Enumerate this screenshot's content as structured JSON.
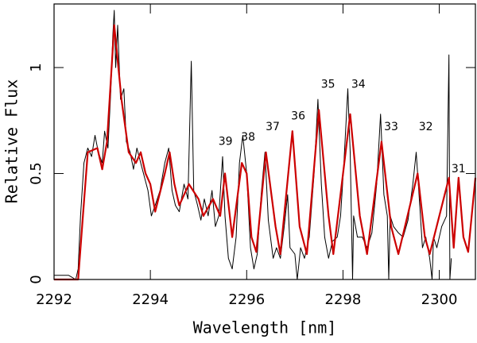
{
  "chart_data": {
    "type": "line",
    "xlabel": "Wavelength [nm]",
    "ylabel": "Relative Flux",
    "xlim": [
      2292,
      2300.75
    ],
    "ylim": [
      0,
      1.3
    ],
    "xticks": [
      2292,
      2294,
      2296,
      2298,
      2300
    ],
    "yticks": [
      0,
      0.5,
      1
    ],
    "series": [
      {
        "color": "#000000",
        "x": [
          2292.0,
          2292.3,
          2292.45,
          2292.5,
          2292.55,
          2292.62,
          2292.7,
          2292.78,
          2292.85,
          2292.92,
          2293.0,
          2293.05,
          2293.12,
          2293.18,
          2293.22,
          2293.25,
          2293.28,
          2293.32,
          2293.38,
          2293.45,
          2293.5,
          2293.58,
          2293.65,
          2293.72,
          2293.8,
          2293.88,
          2293.95,
          2294.02,
          2294.1,
          2294.2,
          2294.3,
          2294.38,
          2294.45,
          2294.52,
          2294.6,
          2294.7,
          2294.78,
          2294.85,
          2294.9,
          2294.98,
          2295.05,
          2295.12,
          2295.2,
          2295.28,
          2295.35,
          2295.42,
          2295.5,
          2295.55,
          2295.62,
          2295.7,
          2295.78,
          2295.85,
          2295.92,
          2296.0,
          2296.08,
          2296.15,
          2296.22,
          2296.3,
          2296.38,
          2296.45,
          2296.55,
          2296.62,
          2296.7,
          2296.78,
          2296.85,
          2296.9,
          2297.0,
          2297.05,
          2297.12,
          2297.2,
          2297.3,
          2297.4,
          2297.48,
          2297.55,
          2297.62,
          2297.7,
          2297.78,
          2297.88,
          2297.95,
          2298.02,
          2298.1,
          2298.15,
          2298.2,
          2298.22,
          2298.3,
          2298.4,
          2298.5,
          2298.6,
          2298.7,
          2298.78,
          2298.85,
          2298.92,
          2298.95,
          2298.98,
          2299.05,
          2299.15,
          2299.25,
          2299.35,
          2299.45,
          2299.52,
          2299.58,
          2299.65,
          2299.72,
          2299.8,
          2299.85,
          2299.88,
          2299.95,
          2300.05,
          2300.15,
          2300.2,
          2300.22,
          2300.25
        ],
        "values": [
          0.02,
          0.02,
          0.0,
          0.05,
          0.3,
          0.55,
          0.62,
          0.58,
          0.68,
          0.6,
          0.55,
          0.7,
          0.62,
          0.9,
          1.15,
          1.27,
          1.0,
          1.2,
          0.85,
          0.9,
          0.65,
          0.6,
          0.52,
          0.62,
          0.55,
          0.48,
          0.42,
          0.3,
          0.35,
          0.42,
          0.55,
          0.62,
          0.42,
          0.35,
          0.32,
          0.45,
          0.38,
          1.03,
          0.42,
          0.35,
          0.28,
          0.38,
          0.3,
          0.42,
          0.25,
          0.3,
          0.58,
          0.3,
          0.1,
          0.05,
          0.2,
          0.55,
          0.68,
          0.5,
          0.15,
          0.05,
          0.12,
          0.4,
          0.6,
          0.28,
          0.1,
          0.15,
          0.1,
          0.25,
          0.4,
          0.15,
          0.12,
          0.0,
          0.15,
          0.1,
          0.2,
          0.5,
          0.85,
          0.45,
          0.2,
          0.1,
          0.18,
          0.2,
          0.3,
          0.55,
          0.9,
          0.6,
          0.0,
          0.3,
          0.2,
          0.2,
          0.15,
          0.22,
          0.45,
          0.78,
          0.4,
          0.3,
          0.0,
          0.3,
          0.25,
          0.22,
          0.2,
          0.28,
          0.45,
          0.6,
          0.4,
          0.15,
          0.2,
          0.1,
          0.0,
          0.2,
          0.15,
          0.25,
          0.3,
          1.06,
          0.0,
          0.1
        ]
      },
      {
        "color": "#cc0000",
        "x": [
          2292.0,
          2292.5,
          2292.6,
          2292.7,
          2292.9,
          2293.0,
          2293.1,
          2293.25,
          2293.4,
          2293.55,
          2293.7,
          2293.8,
          2293.9,
          2294.0,
          2294.1,
          2294.3,
          2294.4,
          2294.5,
          2294.6,
          2294.8,
          2295.0,
          2295.1,
          2295.3,
          2295.45,
          2295.55,
          2295.7,
          2295.9,
          2296.0,
          2296.1,
          2296.2,
          2296.4,
          2296.6,
          2296.7,
          2296.95,
          2297.1,
          2297.25,
          2297.5,
          2297.7,
          2297.8,
          2298.15,
          2298.35,
          2298.5,
          2298.8,
          2299.0,
          2299.15,
          2299.55,
          2299.7,
          2299.8,
          2300.2,
          2300.3,
          2300.4,
          2300.5,
          2300.6,
          2300.75
        ],
        "values": [
          0.0,
          0.0,
          0.3,
          0.6,
          0.62,
          0.52,
          0.65,
          1.2,
          0.85,
          0.6,
          0.55,
          0.6,
          0.5,
          0.45,
          0.32,
          0.5,
          0.6,
          0.45,
          0.35,
          0.45,
          0.38,
          0.3,
          0.38,
          0.3,
          0.5,
          0.2,
          0.55,
          0.5,
          0.2,
          0.13,
          0.6,
          0.25,
          0.12,
          0.7,
          0.25,
          0.12,
          0.8,
          0.3,
          0.12,
          0.78,
          0.3,
          0.12,
          0.65,
          0.25,
          0.12,
          0.5,
          0.2,
          0.12,
          0.48,
          0.15,
          0.48,
          0.2,
          0.13,
          0.48
        ]
      }
    ],
    "annotations": [
      {
        "text": "39",
        "x": 2295.56,
        "y": 0.65
      },
      {
        "text": "38",
        "x": 2296.03,
        "y": 0.67
      },
      {
        "text": "37",
        "x": 2296.54,
        "y": 0.72
      },
      {
        "text": "36",
        "x": 2297.07,
        "y": 0.77
      },
      {
        "text": "35",
        "x": 2297.69,
        "y": 0.92
      },
      {
        "text": "34",
        "x": 2298.32,
        "y": 0.92
      },
      {
        "text": "33",
        "x": 2299.0,
        "y": 0.72
      },
      {
        "text": "32",
        "x": 2299.72,
        "y": 0.72
      },
      {
        "text": "31",
        "x": 2300.4,
        "y": 0.52
      }
    ]
  }
}
